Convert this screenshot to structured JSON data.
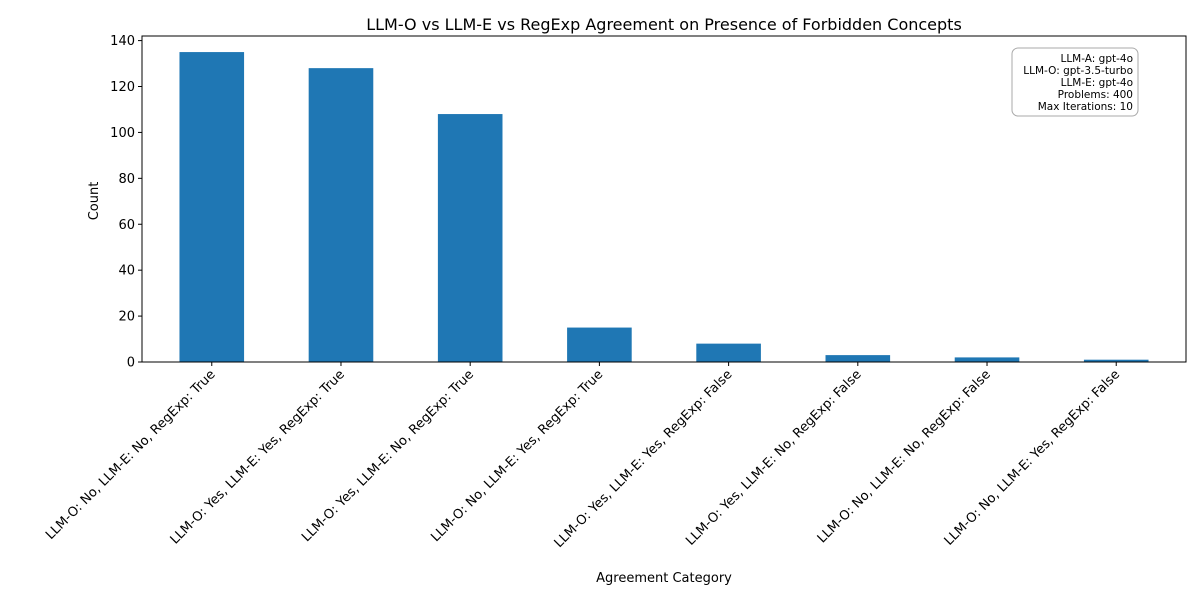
{
  "chart_data": {
    "type": "bar",
    "title": "LLM-O vs LLM-E vs RegExp Agreement on Presence of Forbidden Concepts",
    "xlabel": "Agreement Category",
    "ylabel": "Count",
    "ylim": [
      0,
      142
    ],
    "yticks": [
      0,
      20,
      40,
      60,
      80,
      100,
      120,
      140
    ],
    "grid": false,
    "bar_color": "#1f77b4",
    "categories": [
      "LLM-O: No, LLM-E: No, RegExp: True",
      "LLM-O: Yes, LLM-E: Yes, RegExp: True",
      "LLM-O: Yes, LLM-E: No, RegExp: True",
      "LLM-O: No, LLM-E: Yes, RegExp: True",
      "LLM-O: Yes, LLM-E: Yes, RegExp: False",
      "LLM-O: Yes, LLM-E: No, RegExp: False",
      "LLM-O: No, LLM-E: No, RegExp: False",
      "LLM-O: No, LLM-E: Yes, RegExp: False"
    ],
    "values": [
      135,
      128,
      108,
      15,
      8,
      3,
      2,
      1
    ],
    "annotation": {
      "placement": "top-right",
      "lines": [
        "LLM-A: gpt-4o",
        "LLM-O: gpt-3.5-turbo",
        "LLM-E: gpt-4o",
        "Problems: 400",
        "Max Iterations: 10"
      ]
    }
  }
}
